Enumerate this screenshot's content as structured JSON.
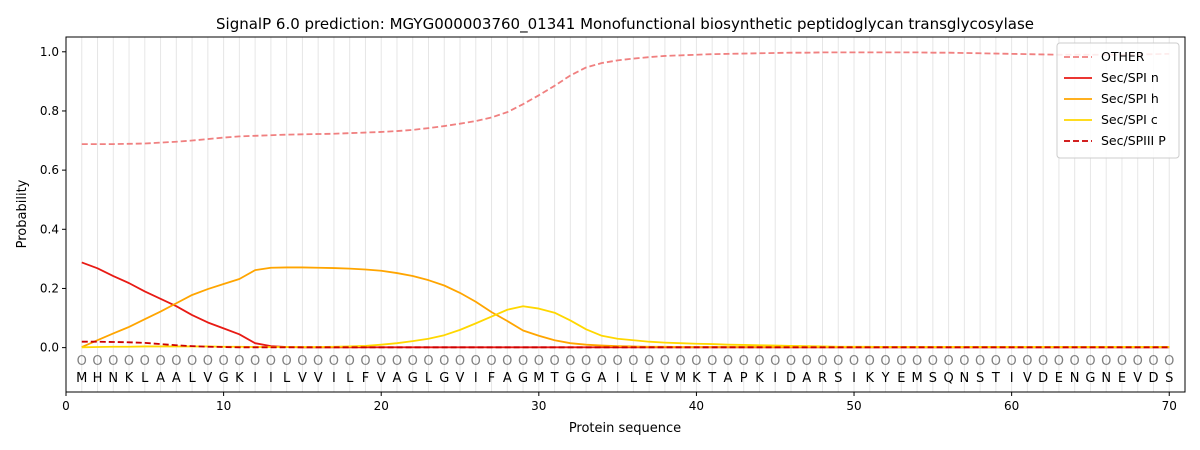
{
  "chart_data": {
    "type": "line",
    "title": "SignalP 6.0 prediction: MGYG000003760_01341 Monofunctional biosynthetic peptidoglycan transglycosylase",
    "xlabel": "Protein sequence",
    "ylabel": "Probability",
    "xlim": [
      0,
      71
    ],
    "ylim": [
      -0.15,
      1.05
    ],
    "xticks": [
      0,
      10,
      20,
      30,
      40,
      50,
      60,
      70
    ],
    "yticks": [
      0.0,
      0.2,
      0.4,
      0.6,
      0.8,
      1.0
    ],
    "ytick_labels": [
      "0.0",
      "0.2",
      "0.4",
      "0.6",
      "0.8",
      "1.0"
    ],
    "grid": "vertical lines at each residue",
    "legend_position": "top-right",
    "sequence": [
      "M",
      "H",
      "N",
      "K",
      "L",
      "A",
      "A",
      "L",
      "V",
      "G",
      "K",
      "I",
      "I",
      "L",
      "V",
      "V",
      "I",
      "L",
      "F",
      "V",
      "A",
      "G",
      "L",
      "G",
      "V",
      "I",
      "F",
      "A",
      "G",
      "M",
      "T",
      "G",
      "G",
      "A",
      "I",
      "L",
      "E",
      "V",
      "M",
      "K",
      "T",
      "A",
      "P",
      "K",
      "I",
      "D",
      "A",
      "R",
      "S",
      "I",
      "K",
      "Y",
      "E",
      "M",
      "S",
      "Q",
      "N",
      "S",
      "T",
      "I",
      "V",
      "D",
      "E",
      "N",
      "G",
      "N",
      "E",
      "V",
      "D",
      "S"
    ],
    "region_marker": "O",
    "series": [
      {
        "name": "OTHER",
        "color": "#f08080",
        "dash": "dashed",
        "values": [
          0.688,
          0.688,
          0.688,
          0.689,
          0.69,
          0.693,
          0.696,
          0.7,
          0.705,
          0.71,
          0.714,
          0.716,
          0.718,
          0.72,
          0.721,
          0.722,
          0.723,
          0.725,
          0.727,
          0.729,
          0.732,
          0.736,
          0.742,
          0.749,
          0.757,
          0.766,
          0.778,
          0.796,
          0.823,
          0.853,
          0.885,
          0.92,
          0.947,
          0.962,
          0.971,
          0.977,
          0.982,
          0.986,
          0.988,
          0.99,
          0.992,
          0.993,
          0.994,
          0.995,
          0.996,
          0.997,
          0.997,
          0.998,
          0.998,
          0.998,
          0.998,
          0.998,
          0.998,
          0.998,
          0.997,
          0.997,
          0.996,
          0.995,
          0.994,
          0.993,
          0.992,
          0.991,
          0.99,
          0.99,
          0.99,
          0.99,
          0.99,
          0.991,
          0.992,
          0.993
        ]
      },
      {
        "name": "Sec/SPI n",
        "color": "#e81a14",
        "dash": "solid",
        "values": [
          0.288,
          0.268,
          0.242,
          0.218,
          0.19,
          0.165,
          0.14,
          0.11,
          0.085,
          0.065,
          0.045,
          0.015,
          0.005,
          0.002,
          0.001,
          0.001,
          0.001,
          0.001,
          0.001,
          0.001,
          0.001,
          0.001,
          0.001,
          0.001,
          0.001,
          0.001,
          0.001,
          0.001,
          0.001,
          0.001,
          0.001,
          0.001,
          0.001,
          0.001,
          0.001,
          0.001,
          0.001,
          0.001,
          0.001,
          0.001,
          0.001,
          0.001,
          0.001,
          0.001,
          0.001,
          0.001,
          0.001,
          0.001,
          0.001,
          0.001,
          0.001,
          0.001,
          0.001,
          0.001,
          0.001,
          0.001,
          0.001,
          0.001,
          0.001,
          0.001,
          0.001,
          0.001,
          0.001,
          0.001,
          0.001,
          0.001,
          0.001,
          0.001,
          0.001,
          0.001
        ]
      },
      {
        "name": "Sec/SPI h",
        "color": "#ffa500",
        "dash": "solid",
        "values": [
          0.002,
          0.025,
          0.048,
          0.07,
          0.096,
          0.122,
          0.15,
          0.178,
          0.198,
          0.215,
          0.232,
          0.262,
          0.27,
          0.271,
          0.271,
          0.27,
          0.269,
          0.267,
          0.264,
          0.26,
          0.252,
          0.242,
          0.228,
          0.21,
          0.185,
          0.155,
          0.12,
          0.09,
          0.058,
          0.04,
          0.025,
          0.015,
          0.01,
          0.007,
          0.005,
          0.004,
          0.003,
          0.003,
          0.002,
          0.002,
          0.002,
          0.002,
          0.002,
          0.002,
          0.002,
          0.002,
          0.002,
          0.002,
          0.002,
          0.002,
          0.002,
          0.002,
          0.002,
          0.002,
          0.002,
          0.002,
          0.002,
          0.002,
          0.002,
          0.002,
          0.002,
          0.002,
          0.002,
          0.002,
          0.002,
          0.002,
          0.002,
          0.002,
          0.002,
          0.002
        ]
      },
      {
        "name": "Sec/SPI c",
        "color": "#ffd700",
        "dash": "solid",
        "values": [
          0.001,
          0.002,
          0.003,
          0.003,
          0.004,
          0.004,
          0.004,
          0.004,
          0.004,
          0.003,
          0.003,
          0.002,
          0.002,
          0.002,
          0.002,
          0.002,
          0.003,
          0.004,
          0.006,
          0.01,
          0.015,
          0.022,
          0.03,
          0.042,
          0.06,
          0.082,
          0.105,
          0.128,
          0.14,
          0.132,
          0.118,
          0.092,
          0.062,
          0.04,
          0.03,
          0.025,
          0.02,
          0.017,
          0.015,
          0.013,
          0.012,
          0.01,
          0.009,
          0.008,
          0.007,
          0.006,
          0.005,
          0.004,
          0.003,
          0.003,
          0.003,
          0.002,
          0.002,
          0.002,
          0.002,
          0.002,
          0.002,
          0.002,
          0.002,
          0.002,
          0.002,
          0.002,
          0.002,
          0.002,
          0.002,
          0.002,
          0.002,
          0.002,
          0.002,
          0.002
        ]
      },
      {
        "name": "Sec/SPIII P",
        "color": "#cc0000",
        "dash": "dashed",
        "values": [
          0.02,
          0.02,
          0.019,
          0.018,
          0.016,
          0.012,
          0.008,
          0.005,
          0.003,
          0.002,
          0.001,
          0.001,
          0.001,
          0.001,
          0.001,
          0.001,
          0.001,
          0.001,
          0.001,
          0.001,
          0.001,
          0.001,
          0.001,
          0.001,
          0.001,
          0.001,
          0.001,
          0.001,
          0.001,
          0.001,
          0.001,
          0.001,
          0.001,
          0.001,
          0.001,
          0.001,
          0.001,
          0.001,
          0.001,
          0.001,
          0.001,
          0.001,
          0.001,
          0.001,
          0.001,
          0.001,
          0.001,
          0.001,
          0.001,
          0.001,
          0.001,
          0.001,
          0.001,
          0.001,
          0.001,
          0.001,
          0.001,
          0.001,
          0.001,
          0.001,
          0.001,
          0.001,
          0.001,
          0.001,
          0.001,
          0.001,
          0.001,
          0.001,
          0.001,
          0.001
        ]
      }
    ]
  }
}
